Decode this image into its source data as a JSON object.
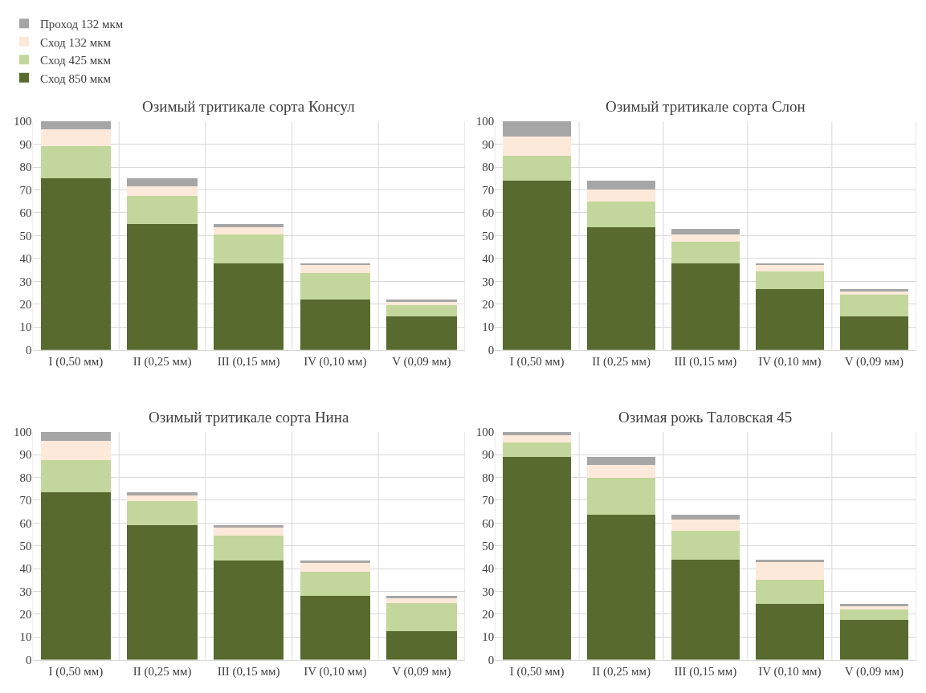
{
  "chart_data": [
    {
      "type": "bar",
      "stacked": true,
      "title": "Озимый тритикале сорта Консул",
      "categories": [
        "I (0,50 мм)",
        "II (0,25 мм)",
        "III (0,15 мм)",
        "IV (0,10 мм)",
        "V (0,09 мм)"
      ],
      "ylim": [
        0,
        100
      ],
      "yticks": [
        0,
        10,
        20,
        30,
        40,
        50,
        60,
        70,
        80,
        90,
        100
      ],
      "grid": true,
      "legend": "top left",
      "series": [
        {
          "name": "Сход 850 мкм",
          "color": "#586a2e",
          "values": [
            75,
            55,
            38,
            22,
            14.5
          ]
        },
        {
          "name": "Сход 425 мкм",
          "color": "#c3d69b",
          "values": [
            14,
            12.5,
            12.5,
            11.5,
            5
          ]
        },
        {
          "name": "Сход 132 мкм",
          "color": "#fde9d9",
          "values": [
            7.5,
            4,
            3,
            3.5,
            1.5
          ]
        },
        {
          "name": "Проход 132 мкм",
          "color": "#a6a6a6",
          "values": [
            3.5,
            3.5,
            1.5,
            1,
            1
          ]
        }
      ]
    },
    {
      "type": "bar",
      "stacked": true,
      "title": "Озимый тритикале сорта Слон",
      "categories": [
        "I (0,50 мм)",
        "II (0,25 мм)",
        "III (0,15 мм)",
        "IV (0,10 мм)",
        "V (0,09 мм)"
      ],
      "ylim": [
        0,
        100
      ],
      "yticks": [
        0,
        10,
        20,
        30,
        40,
        50,
        60,
        70,
        80,
        90,
        100
      ],
      "grid": true,
      "series": [
        {
          "color": "#586a2e",
          "values": [
            74,
            53.5,
            38,
            26.5,
            14.5
          ]
        },
        {
          "color": "#c3d69b",
          "values": [
            11,
            11.5,
            9.5,
            8,
            9.5
          ]
        },
        {
          "color": "#fde9d9",
          "values": [
            8.5,
            5,
            3,
            2.5,
            1.5
          ]
        },
        {
          "color": "#a6a6a6",
          "values": [
            6.5,
            4,
            2.5,
            1,
            1
          ]
        }
      ]
    },
    {
      "type": "bar",
      "stacked": true,
      "title": "Озимый тритикале сорта Нина",
      "categories": [
        "I (0,50 мм)",
        "II (0,25 мм)",
        "III (0,15 мм)",
        "IV (0,10 мм)",
        "V (0,09 мм)"
      ],
      "ylim": [
        0,
        100
      ],
      "yticks": [
        0,
        10,
        20,
        30,
        40,
        50,
        60,
        70,
        80,
        90,
        100
      ],
      "grid": true,
      "series": [
        {
          "color": "#586a2e",
          "values": [
            73.5,
            59,
            43.5,
            28,
            12.5
          ]
        },
        {
          "color": "#c3d69b",
          "values": [
            14,
            10.5,
            11,
            10.5,
            12.5
          ]
        },
        {
          "color": "#fde9d9",
          "values": [
            8.5,
            2.5,
            3.5,
            4,
            2
          ]
        },
        {
          "color": "#a6a6a6",
          "values": [
            4,
            1.5,
            1,
            1,
            1
          ]
        }
      ]
    },
    {
      "type": "bar",
      "stacked": true,
      "title": "Озимая рожь Таловская 45",
      "categories": [
        "I (0,50 мм)",
        "II (0,25 мм)",
        "III (0,15 мм)",
        "IV (0,10 мм)",
        "V (0,09 мм)"
      ],
      "ylim": [
        0,
        100
      ],
      "yticks": [
        0,
        10,
        20,
        30,
        40,
        50,
        60,
        70,
        80,
        90,
        100
      ],
      "grid": true,
      "series": [
        {
          "color": "#586a2e",
          "values": [
            89,
            63.5,
            44,
            24.5,
            17.5
          ]
        },
        {
          "color": "#c3d69b",
          "values": [
            6.5,
            16.5,
            12.5,
            10.5,
            4.5
          ]
        },
        {
          "color": "#fde9d9",
          "values": [
            3,
            5.5,
            5,
            8,
            1.5
          ]
        },
        {
          "color": "#a6a6a6",
          "values": [
            1.5,
            3.5,
            2,
            1,
            1
          ]
        }
      ]
    }
  ]
}
